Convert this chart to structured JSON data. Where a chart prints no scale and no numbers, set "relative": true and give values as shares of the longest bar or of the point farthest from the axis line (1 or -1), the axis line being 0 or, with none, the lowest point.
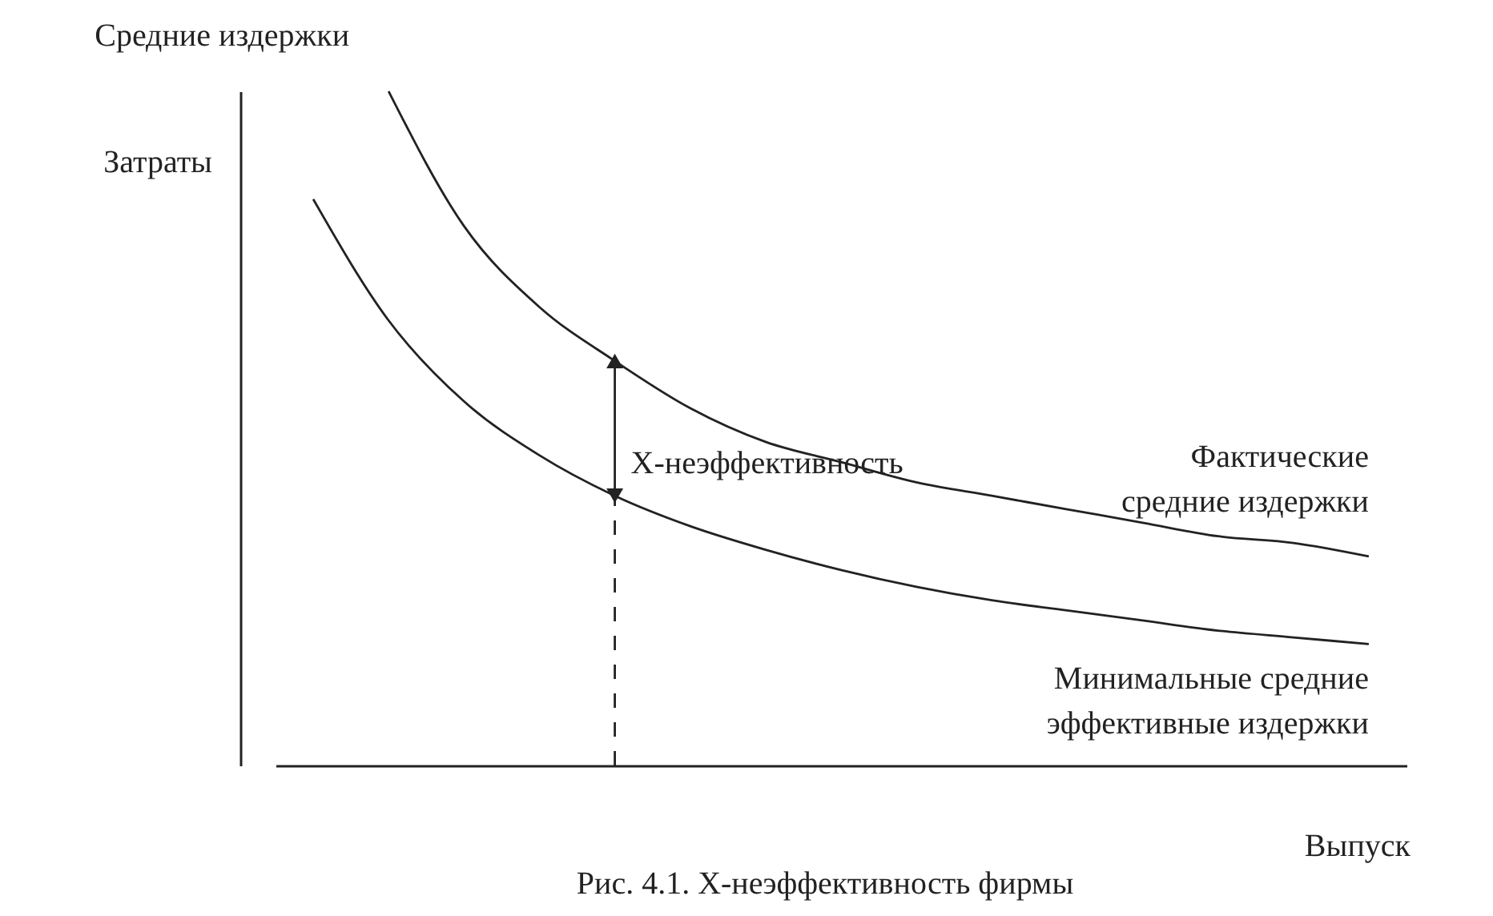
{
  "chart_data": {
    "type": "line",
    "title": "Средние издержки",
    "xlabel": "Выпуск",
    "ylabel": "Затраты",
    "relative": true,
    "categories": [
      null,
      null,
      null,
      null,
      null,
      null,
      null,
      null,
      null,
      null,
      null,
      null,
      null,
      null,
      null
    ],
    "series": [
      {
        "name": "Фактические средние издержки",
        "color": "#222222",
        "values": [
          null,
          1,
          0.8,
          0.68,
          0.6,
          0.53,
          0.48,
          0.45,
          0.42,
          0.4,
          0.38,
          0.36,
          0.34,
          0.33,
          0.31
        ]
      },
      {
        "name": "Минимальные средние эффективные издержки",
        "color": "#222222",
        "values": [
          0.84,
          0.66,
          0.54,
          0.46,
          0.4,
          0.355,
          0.32,
          0.29,
          0.265,
          0.245,
          0.23,
          0.215,
          0.2,
          0.19,
          0.18
        ]
      }
    ],
    "annotations": [
      "X-неэффективность",
      "Рис. 4.1. X-неэффективность фирмы"
    ]
  }
}
